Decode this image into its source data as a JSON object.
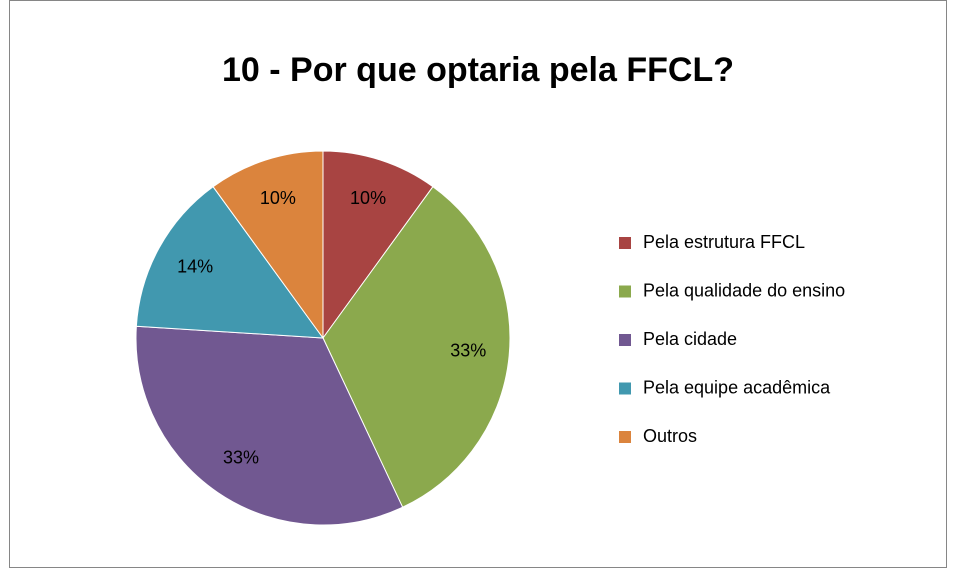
{
  "chart_data": {
    "type": "pie",
    "title": "10 - Por que optaria pela FFCL?",
    "categories": [
      "Pela estrutura FFCL",
      "Pela qualidade do ensino",
      "Pela cidade",
      "Pela equipe acadêmica",
      "Outros"
    ],
    "values": [
      10,
      33,
      33,
      14,
      10
    ],
    "value_labels": [
      "10%",
      "33%",
      "33%",
      "14%",
      "10%"
    ],
    "colors": [
      "#a84442",
      "#8ba94d",
      "#715891",
      "#4198af",
      "#db843d"
    ],
    "legend": "right"
  }
}
